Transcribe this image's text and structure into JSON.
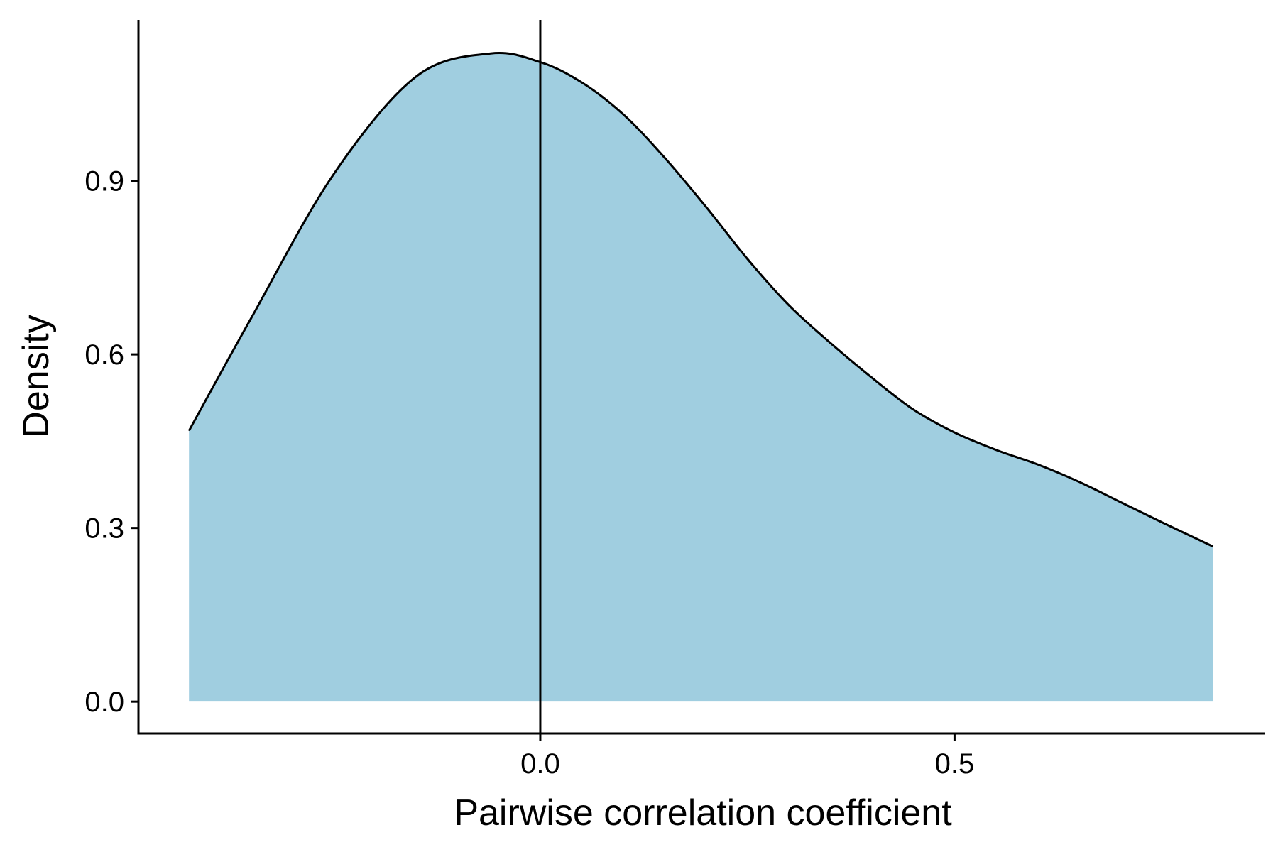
{
  "chart_data": {
    "type": "area",
    "title": "",
    "xlabel": "Pairwise correlation coefficient",
    "ylabel": "Density",
    "x_ticks": [
      "0.0",
      "0.5"
    ],
    "x_tick_values": [
      0.0,
      0.5
    ],
    "y_ticks": [
      "0.0",
      "0.3",
      "0.6",
      "0.9"
    ],
    "y_tick_values": [
      0.0,
      0.3,
      0.6,
      0.9
    ],
    "xlim": [
      -0.485,
      0.875
    ],
    "ylim": [
      -0.055,
      1.178
    ],
    "fill_color": "#a0cee0",
    "line_color": "#000000",
    "vertical_reference_x": 0.0,
    "grid": false,
    "legend": "none",
    "series": [
      {
        "x": [
          -0.424,
          -0.35,
          -0.25,
          -0.15,
          -0.06,
          0.0,
          0.05,
          0.1,
          0.15,
          0.2,
          0.25,
          0.3,
          0.35,
          0.4,
          0.45,
          0.5,
          0.55,
          0.6,
          0.65,
          0.7,
          0.75,
          0.812
        ],
        "y": [
          0.468,
          0.66,
          0.91,
          1.08,
          1.12,
          1.105,
          1.07,
          1.015,
          0.94,
          0.855,
          0.765,
          0.685,
          0.62,
          0.56,
          0.505,
          0.465,
          0.435,
          0.41,
          0.38,
          0.345,
          0.31,
          0.268
        ]
      }
    ]
  }
}
